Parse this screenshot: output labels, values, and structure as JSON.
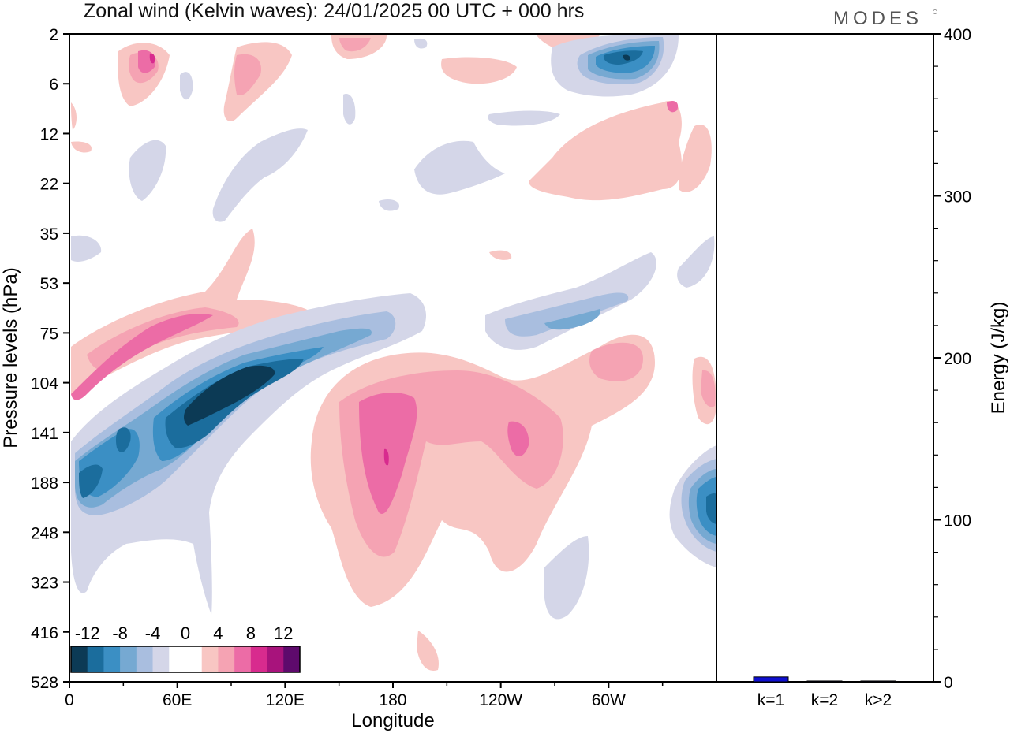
{
  "header": {
    "title": "Zonal wind (Kelvin waves):  24/01/2025  00 UTC  + 000 hrs",
    "logo_text": "MODES"
  },
  "chart_data": [
    {
      "type": "heatmap",
      "title": "Zonal wind (Kelvin waves):  24/01/2025  00 UTC  + 000 hrs",
      "xlabel": "Longitude",
      "ylabel": "Pressure levels (hPa)",
      "x_ticks": [
        "0",
        "60E",
        "120E",
        "180",
        "120W",
        "60W"
      ],
      "y_ticks": [
        "2",
        "6",
        "12",
        "22",
        "35",
        "53",
        "75",
        "104",
        "141",
        "188",
        "248",
        "323",
        "416",
        "528"
      ],
      "colorbar": {
        "labels": [
          "-12",
          "-8",
          "-4",
          "0",
          "4",
          "8",
          "12"
        ],
        "colors": [
          "#0c3a55",
          "#1b6d9d",
          "#3b8fc4",
          "#76a9d2",
          "#a9bedf",
          "#d4d6e8",
          "#ffffff",
          "#ffffff",
          "#f8c6c3",
          "#f5a3b3",
          "#ec6ca6",
          "#d82b8e",
          "#a8137c",
          "#5e0a6c"
        ]
      }
    },
    {
      "type": "bar",
      "categories": [
        "k=1",
        "k=2",
        "k>2"
      ],
      "values": [
        3,
        0.5,
        0.5
      ],
      "ylabel": "Energy (J/kg)",
      "ylim": [
        0,
        400
      ],
      "y_ticks": [
        "0",
        "100",
        "200",
        "300",
        "400"
      ],
      "bar_color": "#1010d0"
    }
  ]
}
